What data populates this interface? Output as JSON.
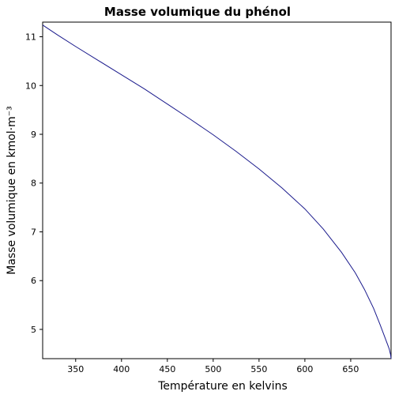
{
  "chart_data": {
    "type": "line",
    "title": "Masse volumique du phénol",
    "xlabel": "Température en kelvins",
    "ylabel": "Masse volumique en kmol·m⁻³",
    "xlim": [
      314,
      694
    ],
    "ylim": [
      4.4,
      11.3
    ],
    "xticks": [
      350,
      400,
      450,
      500,
      550,
      600,
      650
    ],
    "yticks": [
      5,
      6,
      7,
      8,
      9,
      10,
      11
    ],
    "grid": false,
    "legend": "none",
    "color": "#1a1a8c",
    "series": [
      {
        "x": [
          314,
          330,
          350,
          375,
          400,
          425,
          450,
          475,
          500,
          525,
          550,
          575,
          600,
          620,
          640,
          655,
          665,
          675,
          682,
          687,
          690,
          692,
          693.5,
          694
        ],
        "y": [
          11.24,
          11.04,
          10.8,
          10.51,
          10.22,
          9.93,
          9.62,
          9.31,
          8.99,
          8.65,
          8.29,
          7.9,
          7.47,
          7.06,
          6.58,
          6.16,
          5.82,
          5.43,
          5.1,
          4.85,
          4.7,
          4.6,
          4.48,
          4.4
        ]
      }
    ]
  }
}
